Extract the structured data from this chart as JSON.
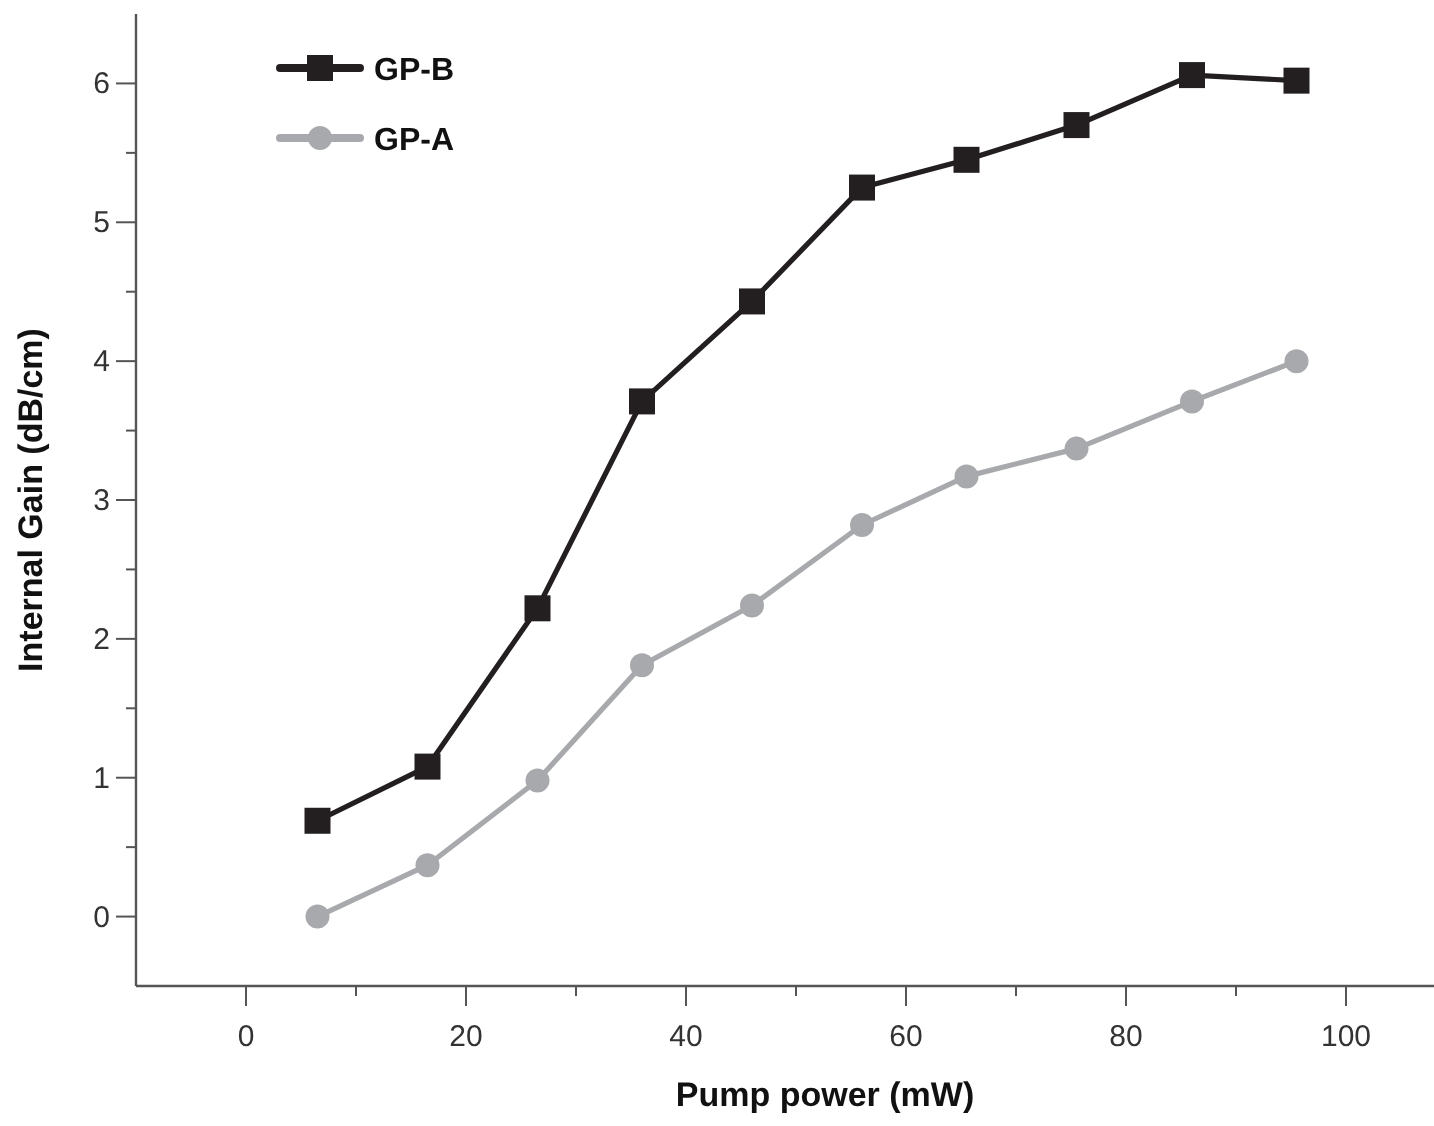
{
  "chart_data": {
    "type": "line",
    "xlabel": "Pump power (mW)",
    "ylabel": "Internal Gain (dB/cm)",
    "xlim": [
      -10,
      108
    ],
    "xticks": [
      0,
      {
        "value": 10,
        "label": null
      },
      20,
      {
        "value": 30,
        "label": null
      },
      40,
      {
        "value": 50,
        "label": null
      },
      60,
      {
        "value": 70,
        "label": null
      },
      80,
      {
        "value": 90,
        "label": null
      },
      100
    ],
    "ylim": [
      -0.5,
      6.5
    ],
    "yticks": [
      0,
      {
        "value": 0.5,
        "label": null
      },
      1,
      {
        "value": 1.5,
        "label": null
      },
      2,
      {
        "value": 2.5,
        "label": null
      },
      3,
      {
        "value": 3.5,
        "label": null
      },
      4,
      {
        "value": 4.5,
        "label": null
      },
      5,
      {
        "value": 5.5,
        "label": null
      },
      6
    ],
    "legend": "top left",
    "grid": false,
    "series": [
      {
        "name": "GP-B",
        "color": "#231f20",
        "marker": "square",
        "x": [
          6.5,
          16.5,
          26.5,
          36,
          46,
          56,
          65.5,
          75.5,
          86,
          95.5
        ],
        "values": [
          0.69,
          1.08,
          2.22,
          3.71,
          4.43,
          5.25,
          5.45,
          5.7,
          6.06,
          6.02
        ]
      },
      {
        "name": "GP-A",
        "color": "#a7a9ac",
        "marker": "circle",
        "x": [
          6.5,
          16.5,
          26.5,
          36,
          46,
          56,
          65.5,
          75.5,
          86,
          95.5
        ],
        "values": [
          0,
          0.37,
          0.98,
          1.81,
          2.24,
          2.82,
          3.17,
          3.37,
          3.71,
          4.0
        ]
      }
    ]
  }
}
